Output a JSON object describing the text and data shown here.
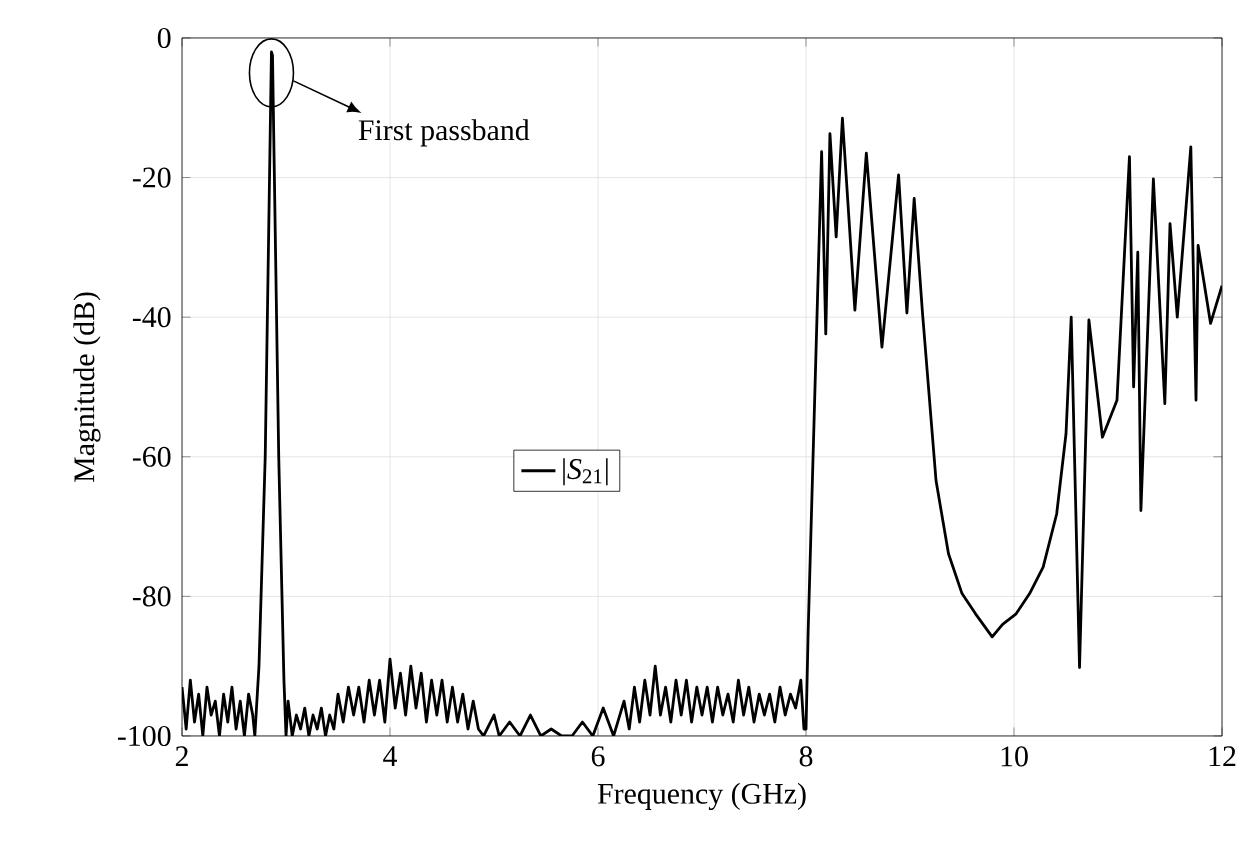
{
  "chart_data": {
    "type": "line",
    "xlabel": "Frequency (GHz)",
    "ylabel": "Magnitude (dB)",
    "xlim": [
      2,
      12
    ],
    "ylim": [
      -100,
      0
    ],
    "xticks": [
      2,
      4,
      6,
      8,
      10,
      12
    ],
    "yticks": [
      -100,
      -80,
      -60,
      -40,
      -20,
      0
    ],
    "grid": true,
    "legend": "center",
    "line_style": "solid",
    "marker": "none",
    "annotations": [
      "First passband"
    ],
    "x": [
      2.0,
      2.04,
      2.08,
      2.12,
      2.16,
      2.2,
      2.24,
      2.28,
      2.32,
      2.36,
      2.4,
      2.44,
      2.48,
      2.52,
      2.56,
      2.6,
      2.64,
      2.68,
      2.7,
      2.74,
      2.8,
      2.86,
      2.87,
      2.93,
      2.98,
      3.0,
      3.02,
      3.06,
      3.1,
      3.14,
      3.18,
      3.22,
      3.26,
      3.3,
      3.34,
      3.38,
      3.42,
      3.46,
      3.5,
      3.55,
      3.6,
      3.65,
      3.7,
      3.75,
      3.8,
      3.85,
      3.9,
      3.95,
      4.0,
      4.05,
      4.1,
      4.15,
      4.2,
      4.25,
      4.3,
      4.35,
      4.4,
      4.45,
      4.5,
      4.55,
      4.6,
      4.65,
      4.7,
      4.75,
      4.8,
      4.85,
      4.9,
      5.0,
      5.05,
      5.15,
      5.25,
      5.35,
      5.45,
      5.55,
      5.65,
      5.75,
      5.85,
      5.95,
      6.05,
      6.15,
      6.25,
      6.3,
      6.35,
      6.4,
      6.45,
      6.5,
      6.55,
      6.6,
      6.65,
      6.7,
      6.75,
      6.8,
      6.85,
      6.9,
      6.95,
      7.0,
      7.05,
      7.1,
      7.15,
      7.2,
      7.25,
      7.3,
      7.35,
      7.4,
      7.45,
      7.5,
      7.55,
      7.6,
      7.65,
      7.7,
      7.75,
      7.8,
      7.85,
      7.9,
      7.95,
      7.98,
      8.0,
      8.02,
      8.15,
      8.19,
      8.23,
      8.29,
      8.35,
      8.47,
      8.58,
      8.73,
      8.89,
      8.97,
      9.04,
      9.12,
      9.25,
      9.37,
      9.5,
      9.63,
      9.79,
      9.89,
      10.02,
      10.15,
      10.28,
      10.41,
      10.5,
      10.55,
      10.63,
      10.72,
      10.85,
      10.99,
      11.11,
      11.15,
      11.19,
      11.22,
      11.34,
      11.45,
      11.5,
      11.57,
      11.7,
      11.75,
      11.77,
      11.89,
      12.0
    ],
    "series": [
      {
        "name": "|*S*$_{21}$|",
        "color": "#000000",
        "values": [
          -93,
          -99,
          -92,
          -98,
          -94,
          -100,
          -93,
          -97,
          -95,
          -100,
          -94,
          -98,
          -93,
          -99,
          -95,
          -100,
          -94,
          -97,
          -100,
          -90,
          -60,
          -2,
          -2.5,
          -60,
          -92,
          -100,
          -95,
          -100,
          -97,
          -99,
          -96,
          -100,
          -97,
          -99,
          -96,
          -100,
          -97,
          -99,
          -94,
          -98,
          -93,
          -97,
          -93,
          -98,
          -92,
          -97,
          -92,
          -98,
          -89,
          -96,
          -91,
          -97,
          -90,
          -96,
          -91,
          -98,
          -92,
          -97,
          -92,
          -98,
          -93,
          -98,
          -94,
          -99,
          -95,
          -99,
          -100,
          -97,
          -100,
          -98,
          -100,
          -97,
          -100,
          -99,
          -100,
          -100,
          -98,
          -100,
          -96,
          -100,
          -95,
          -99,
          -93,
          -98,
          -92,
          -97,
          -90,
          -97,
          -93,
          -98,
          -92,
          -97,
          -92,
          -98,
          -93,
          -97,
          -93,
          -98,
          -93,
          -97,
          -94,
          -98,
          -92,
          -97,
          -93,
          -98,
          -94,
          -97,
          -94,
          -98,
          -93,
          -97,
          -94,
          -96,
          -92,
          -99,
          -99,
          -85.4,
          -16.3,
          -42.4,
          -13.7,
          -28.5,
          -11.5,
          -39,
          -16.5,
          -44.3,
          -19.6,
          -39.4,
          -23,
          -39.4,
          -63.4,
          -73.9,
          -79.6,
          -82.5,
          -85.8,
          -84,
          -82.5,
          -79.6,
          -75.8,
          -68.2,
          -56.7,
          -40,
          -90.2,
          -40.4,
          -57.2,
          -51.9,
          -17,
          -50,
          -30.7,
          -67.7,
          -20.2,
          -52.4,
          -26.6,
          -40,
          -15.6,
          -51.9,
          -29.7,
          -40.9,
          -35.5
        ]
      }
    ]
  }
}
